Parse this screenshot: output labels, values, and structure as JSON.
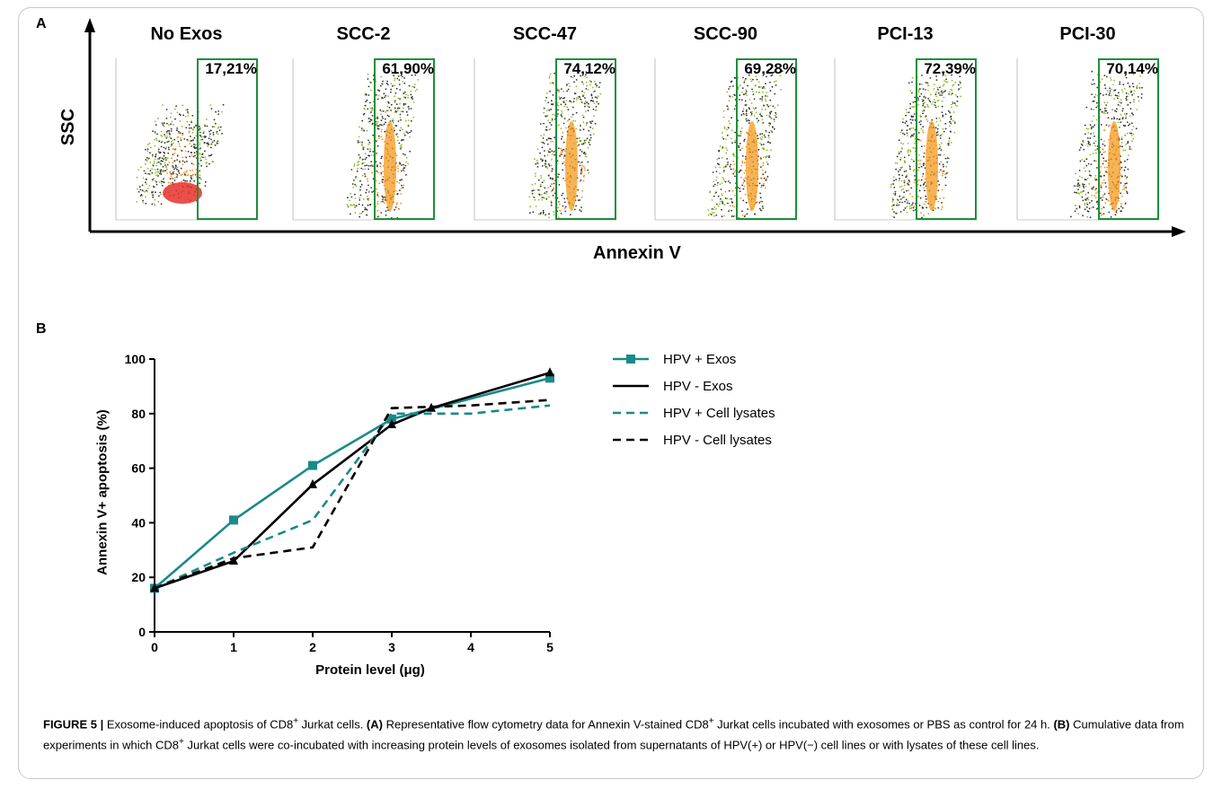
{
  "panel_a": {
    "letter": "A",
    "y_label": "SSC",
    "x_label": "Annexin V",
    "panels": [
      {
        "name": "No Exos",
        "gate": "17,21%"
      },
      {
        "name": "SCC-2",
        "gate": "61,90%"
      },
      {
        "name": "SCC-47",
        "gate": "74,12%"
      },
      {
        "name": "SCC-90",
        "gate": "69,28%"
      },
      {
        "name": "PCI-13",
        "gate": "72,39%"
      },
      {
        "name": "PCI-30",
        "gate": "70,14%"
      }
    ],
    "gate_color": "#1e8f3a"
  },
  "panel_b": {
    "letter": "B"
  },
  "chart_data": {
    "type": "line",
    "title": "",
    "xlabel": "Protein level (μg)",
    "ylabel": "Annexin V+ apoptosis (%)",
    "xlim": [
      0,
      5
    ],
    "ylim": [
      0,
      100
    ],
    "xticks": [
      "0",
      "1",
      "2",
      "3",
      "4",
      "5"
    ],
    "yticks": [
      "0",
      "20",
      "40",
      "60",
      "80",
      "100"
    ],
    "grid": false,
    "legend_position": "right",
    "series": [
      {
        "name": "HPV + Exos",
        "color": "#1a8a8a",
        "dash": false,
        "marker": "square",
        "x": [
          0,
          1,
          2,
          3,
          5
        ],
        "y": [
          16,
          41,
          61,
          78,
          93
        ]
      },
      {
        "name": "HPV -  Exos",
        "color": "#000000",
        "dash": false,
        "marker": "triangle",
        "x": [
          0,
          1,
          2,
          3,
          3.5,
          5
        ],
        "y": [
          16,
          26,
          54,
          76,
          82,
          95
        ]
      },
      {
        "name": "HPV + Cell lysates",
        "color": "#1a8a8a",
        "dash": true,
        "marker": "none",
        "x": [
          0,
          1,
          2,
          3,
          4,
          5
        ],
        "y": [
          16,
          29,
          41,
          80,
          80,
          83
        ]
      },
      {
        "name": "HPV - Cell lysates",
        "color": "#000000",
        "dash": true,
        "marker": "none",
        "x": [
          0,
          1,
          2,
          3,
          4,
          5
        ],
        "y": [
          16,
          27,
          31,
          82,
          83,
          85
        ]
      }
    ]
  },
  "caption": {
    "label": "FIGURE 5 |",
    "part1": " Exosome-induced apoptosis of CD8",
    "sup1": "+",
    "part2": " Jurkat cells. ",
    "a_tag": "(A)",
    "part3": " Representative flow cytometry data for Annexin V-stained CD8",
    "sup2": "+",
    "part4": " Jurkat cells incubated with exosomes or PBS as control for 24 h. ",
    "b_tag": "(B)",
    "part5": " Cumulative data from experiments in which CD8",
    "sup3": "+",
    "part6": " Jurkat cells were co-incubated with increasing protein levels of exosomes isolated from supernatants of HPV(+) or HPV(−) cell lines or with lysates of these cell lines."
  }
}
